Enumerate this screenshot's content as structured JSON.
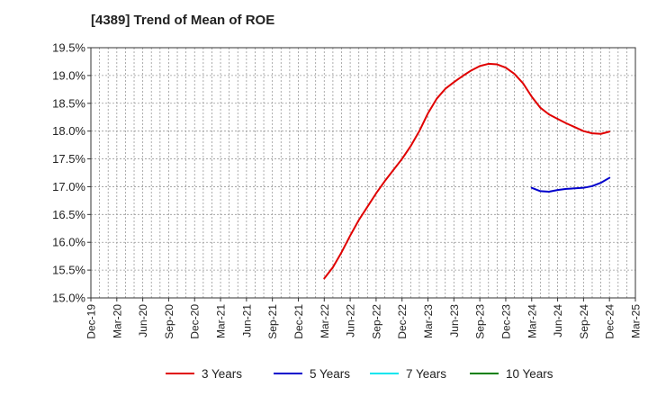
{
  "chart_data": {
    "type": "line",
    "title": "[4389]  Trend of Mean of ROE",
    "x_tick_labels": [
      "Dec-19",
      "Mar-20",
      "Jun-20",
      "Sep-20",
      "Dec-20",
      "Mar-21",
      "Jun-21",
      "Sep-21",
      "Dec-21",
      "Mar-22",
      "Jun-22",
      "Sep-22",
      "Dec-22",
      "Mar-23",
      "Jun-23",
      "Sep-23",
      "Dec-23",
      "Mar-24",
      "Jun-24",
      "Sep-24",
      "Dec-24",
      "Mar-25"
    ],
    "y_tick_labels": [
      "15.0%",
      "15.5%",
      "16.0%",
      "16.5%",
      "17.0%",
      "17.5%",
      "18.0%",
      "18.5%",
      "19.0%",
      "19.5%"
    ],
    "ylim": [
      15.0,
      19.5
    ],
    "y_unit": "%",
    "grid": true,
    "legend_position": "bottom",
    "series": [
      {
        "name": "3 Years",
        "color": "#e00000",
        "x": [
          "2022-03",
          "2022-04",
          "2022-05",
          "2022-06",
          "2022-07",
          "2022-08",
          "2022-09",
          "2022-10",
          "2022-11",
          "2022-12",
          "2023-01",
          "2023-02",
          "2023-03",
          "2023-04",
          "2023-05",
          "2023-06",
          "2023-07",
          "2023-08",
          "2023-09",
          "2023-10",
          "2023-11",
          "2023-12",
          "2024-01",
          "2024-02",
          "2024-03",
          "2024-04",
          "2024-05",
          "2024-06",
          "2024-07",
          "2024-08",
          "2024-09",
          "2024-10",
          "2024-11",
          "2024-12"
        ],
        "values": [
          15.35,
          15.55,
          15.82,
          16.12,
          16.4,
          16.64,
          16.88,
          17.1,
          17.3,
          17.5,
          17.73,
          18.0,
          18.32,
          18.58,
          18.76,
          18.88,
          18.99,
          19.09,
          19.17,
          19.21,
          19.2,
          19.14,
          19.03,
          18.86,
          18.62,
          18.42,
          18.3,
          18.22,
          18.14,
          18.07,
          18.0,
          17.96,
          17.95,
          17.99
        ]
      },
      {
        "name": "5 Years",
        "color": "#0000cc",
        "x": [
          "2024-03",
          "2024-04",
          "2024-05",
          "2024-06",
          "2024-07",
          "2024-08",
          "2024-09",
          "2024-10",
          "2024-11",
          "2024-12"
        ],
        "values": [
          16.98,
          16.92,
          16.91,
          16.94,
          16.96,
          16.97,
          16.98,
          17.01,
          17.07,
          17.16
        ]
      },
      {
        "name": "7 Years",
        "color": "#00e5ee",
        "x": [],
        "values": []
      },
      {
        "name": "10 Years",
        "color": "#008000",
        "x": [],
        "values": []
      }
    ]
  }
}
